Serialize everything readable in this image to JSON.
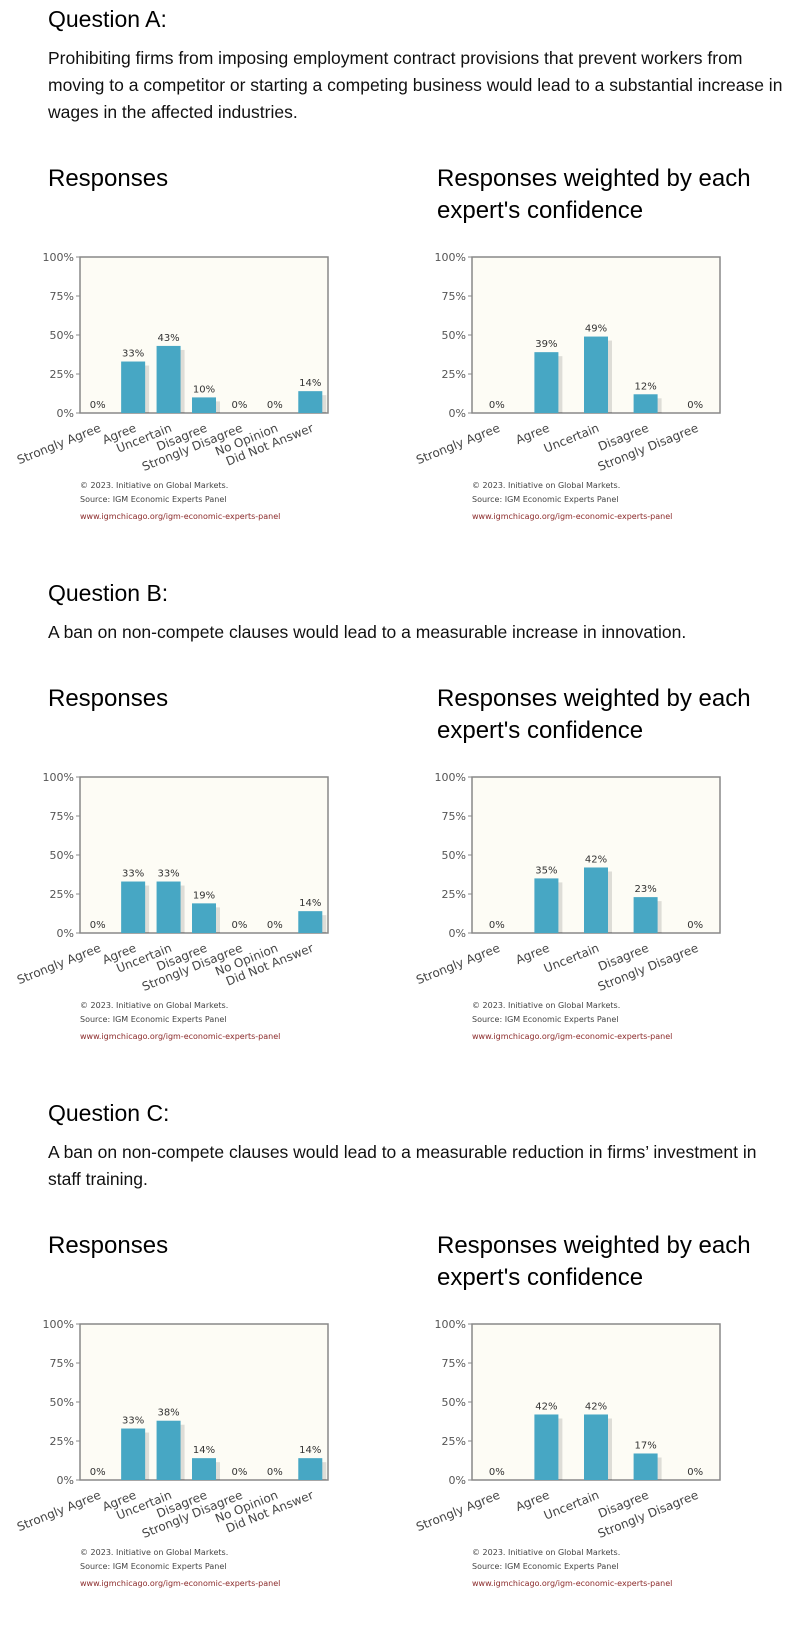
{
  "questions": [
    {
      "title": "Question A:",
      "text": "Prohibiting firms from imposing employment contract provisions that prevent workers from moving to a competitor or starting a competing business would lead to a substantial increase in wages in the affected industries."
    },
    {
      "title": "Question B:",
      "text": "A ban on non-compete clauses would lead to a measurable increase in innovation."
    },
    {
      "title": "Question C:",
      "text": "A ban on non-compete clauses would lead to a measurable reduction in firms’ investment in staff training."
    }
  ],
  "chart_titles": {
    "responses": "Responses",
    "weighted": "Responses weighted by each expert's confidence"
  },
  "footer": {
    "copyright": "© 2023. Initiative on Global Markets.",
    "source": "Source: IGM Economic Experts Panel",
    "link": "www.igmchicago.org/igm-economic-experts-panel"
  },
  "colors": {
    "bar": "#47a7c4",
    "plot_bg": "#fdfcf5",
    "frame": "#888888"
  },
  "chart_data": [
    {
      "question": "Question A",
      "title": "Responses",
      "type": "bar",
      "categories": [
        "Strongly Agree",
        "Agree",
        "Uncertain",
        "Disagree",
        "Strongly Disagree",
        "No Opinion",
        "Did Not Answer"
      ],
      "values": [
        0,
        33,
        43,
        10,
        0,
        0,
        14
      ],
      "value_labels": [
        "0%",
        "33%",
        "43%",
        "10%",
        "0%",
        "0%",
        "14%"
      ],
      "yticks": [
        "0%",
        "25%",
        "50%",
        "75%",
        "100%"
      ],
      "ylim": [
        0,
        100
      ],
      "grid": false,
      "legend": "none"
    },
    {
      "question": "Question A",
      "title": "Responses weighted by each expert's confidence",
      "type": "bar",
      "categories": [
        "Strongly Agree",
        "Agree",
        "Uncertain",
        "Disagree",
        "Strongly Disagree"
      ],
      "values": [
        0,
        39,
        49,
        12,
        0
      ],
      "value_labels": [
        "0%",
        "39%",
        "49%",
        "12%",
        "0%"
      ],
      "yticks": [
        "0%",
        "25%",
        "50%",
        "75%",
        "100%"
      ],
      "ylim": [
        0,
        100
      ],
      "grid": false,
      "legend": "none"
    },
    {
      "question": "Question B",
      "title": "Responses",
      "type": "bar",
      "categories": [
        "Strongly Agree",
        "Agree",
        "Uncertain",
        "Disagree",
        "Strongly Disagree",
        "No Opinion",
        "Did Not Answer"
      ],
      "values": [
        0,
        33,
        33,
        19,
        0,
        0,
        14
      ],
      "value_labels": [
        "0%",
        "33%",
        "33%",
        "19%",
        "0%",
        "0%",
        "14%"
      ],
      "yticks": [
        "0%",
        "25%",
        "50%",
        "75%",
        "100%"
      ],
      "ylim": [
        0,
        100
      ],
      "grid": false,
      "legend": "none"
    },
    {
      "question": "Question B",
      "title": "Responses weighted by each expert's confidence",
      "type": "bar",
      "categories": [
        "Strongly Agree",
        "Agree",
        "Uncertain",
        "Disagree",
        "Strongly Disagree"
      ],
      "values": [
        0,
        35,
        42,
        23,
        0
      ],
      "value_labels": [
        "0%",
        "35%",
        "42%",
        "23%",
        "0%"
      ],
      "yticks": [
        "0%",
        "25%",
        "50%",
        "75%",
        "100%"
      ],
      "ylim": [
        0,
        100
      ],
      "grid": false,
      "legend": "none"
    },
    {
      "question": "Question C",
      "title": "Responses",
      "type": "bar",
      "categories": [
        "Strongly Agree",
        "Agree",
        "Uncertain",
        "Disagree",
        "Strongly Disagree",
        "No Opinion",
        "Did Not Answer"
      ],
      "values": [
        0,
        33,
        38,
        14,
        0,
        0,
        14
      ],
      "value_labels": [
        "0%",
        "33%",
        "38%",
        "14%",
        "0%",
        "0%",
        "14%"
      ],
      "yticks": [
        "0%",
        "25%",
        "50%",
        "75%",
        "100%"
      ],
      "ylim": [
        0,
        100
      ],
      "grid": false,
      "legend": "none"
    },
    {
      "question": "Question C",
      "title": "Responses weighted by each expert's confidence",
      "type": "bar",
      "categories": [
        "Strongly Agree",
        "Agree",
        "Uncertain",
        "Disagree",
        "Strongly Disagree"
      ],
      "values": [
        0,
        42,
        42,
        17,
        0
      ],
      "value_labels": [
        "0%",
        "42%",
        "42%",
        "17%",
        "0%"
      ],
      "yticks": [
        "0%",
        "25%",
        "50%",
        "75%",
        "100%"
      ],
      "ylim": [
        0,
        100
      ],
      "grid": false,
      "legend": "none"
    }
  ]
}
